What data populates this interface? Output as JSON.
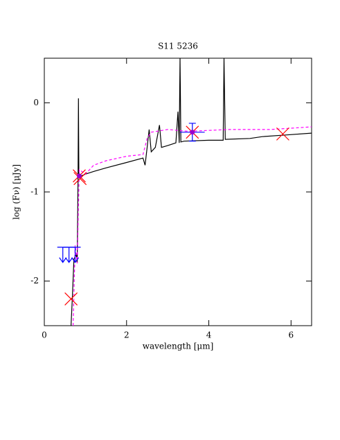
{
  "chart_data": {
    "type": "sed",
    "title": "S11 5236",
    "x_label": "wavelength [μm]",
    "y_label": "log (Fν) [μJy]",
    "xlim": [
      0,
      6.5
    ],
    "ylim": [
      -2.5,
      0.5
    ],
    "xticks": [
      0,
      2,
      4,
      6
    ],
    "yticks": [
      -2,
      -1,
      0
    ],
    "series": [
      {
        "kind": "line",
        "color": "#000000",
        "dash": false,
        "x": [
          0.65,
          0.68,
          0.72,
          0.78,
          0.8,
          0.82,
          0.83,
          0.84,
          0.9,
          1.0,
          1.2,
          1.5,
          2.0,
          2.4,
          2.45,
          2.5,
          2.55,
          2.6,
          2.7,
          2.8,
          2.85,
          3.0,
          3.2,
          3.25,
          3.28,
          3.3,
          3.32,
          3.4,
          4.0,
          4.35,
          4.37,
          4.4,
          5.0,
          5.3,
          5.9,
          6.5
        ],
        "values": [
          -2.5,
          -2.2,
          -1.75,
          -1.7,
          -1.8,
          -0.85,
          0.05,
          -0.8,
          -0.82,
          -0.8,
          -0.77,
          -0.73,
          -0.67,
          -0.62,
          -0.7,
          -0.5,
          -0.3,
          -0.55,
          -0.5,
          -0.25,
          -0.5,
          -0.48,
          -0.45,
          -0.1,
          -0.45,
          0.5,
          -0.44,
          -0.43,
          -0.42,
          -0.42,
          0.5,
          -0.41,
          -0.4,
          -0.38,
          -0.36,
          -0.34
        ]
      },
      {
        "kind": "line",
        "color": "#ff00ff",
        "dash": true,
        "x": [
          0.7,
          0.75,
          0.8,
          0.85,
          1.0,
          1.2,
          1.5,
          2.0,
          2.4,
          2.5,
          2.6,
          3.0,
          3.5,
          4.5,
          5.5,
          6.5
        ],
        "values": [
          -2.5,
          -1.6,
          -1.8,
          -0.75,
          -0.8,
          -0.7,
          -0.65,
          -0.6,
          -0.58,
          -0.4,
          -0.33,
          -0.3,
          -0.32,
          -0.3,
          -0.3,
          -0.27
        ]
      },
      {
        "kind": "cross",
        "color": "#ff0000",
        "x": [
          0.65,
          0.85,
          0.87,
          3.6,
          5.8
        ],
        "values": [
          -2.2,
          -0.82,
          -0.85,
          -0.33,
          -0.35
        ]
      },
      {
        "kind": "upper_limit",
        "color": "#0000ff",
        "x": [
          0.45,
          0.6,
          0.75
        ],
        "values": [
          -1.62,
          -1.62,
          -1.62
        ]
      },
      {
        "kind": "errorbar",
        "color": "#0000ff",
        "x": [
          3.6
        ],
        "values": [
          -0.33
        ],
        "errors": [
          0.1
        ],
        "x_errors": [
          0.3
        ]
      },
      {
        "kind": "dot",
        "color": "#9900cc",
        "x": [
          0.85,
          3.6
        ],
        "values": [
          -0.82,
          -0.33
        ]
      }
    ]
  }
}
